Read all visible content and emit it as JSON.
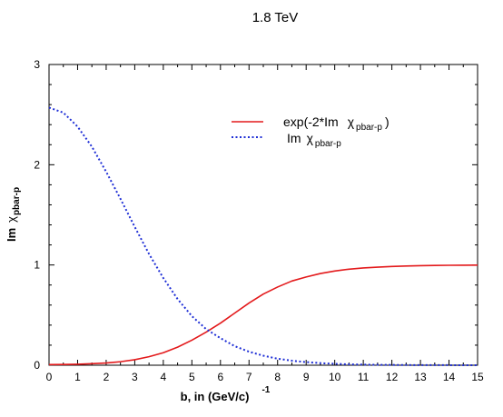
{
  "chart_data": {
    "type": "line",
    "title": "1.8 TeV",
    "xlabel": {
      "main": "b, in (GeV/c)",
      "superscript": "-1"
    },
    "ylabel": {
      "main": "Im",
      "symbol": "χ",
      "subscript": "pbar-p"
    },
    "xlim": [
      0,
      15
    ],
    "ylim": [
      0,
      3
    ],
    "x_ticks": [
      "0",
      "1",
      "2",
      "3",
      "4",
      "5",
      "6",
      "7",
      "8",
      "9",
      "10",
      "11",
      "12",
      "13",
      "14",
      "15"
    ],
    "y_ticks": [
      "0",
      "1",
      "2",
      "3"
    ],
    "grid": false,
    "legend_position": "top-right",
    "x": [
      0,
      0.5,
      1,
      1.5,
      2,
      2.5,
      3,
      3.5,
      4,
      4.5,
      5,
      5.5,
      6,
      6.5,
      7,
      7.5,
      8,
      8.5,
      9,
      9.5,
      10,
      10.5,
      11,
      11.5,
      12,
      12.5,
      13,
      13.5,
      14,
      14.5,
      15
    ],
    "series": [
      {
        "legend": {
          "main": "exp(-2*Im",
          "symbol": "χ",
          "subscript": "pbar-p",
          "close": ")"
        },
        "color": "#e31a1c",
        "style": "solid",
        "values": [
          0.006,
          0.007,
          0.01,
          0.015,
          0.022,
          0.035,
          0.055,
          0.085,
          0.125,
          0.18,
          0.25,
          0.33,
          0.42,
          0.52,
          0.62,
          0.71,
          0.78,
          0.84,
          0.88,
          0.915,
          0.94,
          0.958,
          0.97,
          0.978,
          0.985,
          0.99,
          0.993,
          0.995,
          0.997,
          0.998,
          0.999
        ]
      },
      {
        "legend": {
          "main": "Im",
          "symbol": "χ",
          "subscript": "pbar-p",
          "close": ""
        },
        "color": "#1f2fd6",
        "style": "dotted",
        "values": [
          2.57,
          2.52,
          2.38,
          2.18,
          1.93,
          1.66,
          1.38,
          1.11,
          0.87,
          0.66,
          0.49,
          0.36,
          0.27,
          0.19,
          0.135,
          0.095,
          0.065,
          0.045,
          0.031,
          0.021,
          0.014,
          0.009,
          0.006,
          0.004,
          0.003,
          0.002,
          0.001,
          0.001,
          0.0005,
          0.0003,
          0.0002
        ]
      }
    ]
  }
}
